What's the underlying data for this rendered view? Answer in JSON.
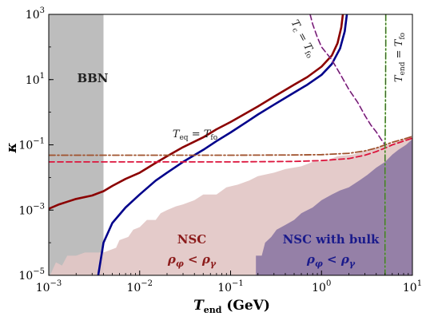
{
  "chart_data": {
    "type": "line",
    "xscale": "log",
    "yscale": "log",
    "xlim": [
      0.001,
      10
    ],
    "ylim": [
      1e-05,
      1000
    ],
    "xlabel_main": "T",
    "xlabel_sub": "end",
    "xlabel_unit": " (GeV)",
    "ylabel": "κ",
    "x_ticks": [
      {
        "value": 0.001,
        "base": "10",
        "exp": "−3"
      },
      {
        "value": 0.01,
        "base": "10",
        "exp": "−2"
      },
      {
        "value": 0.1,
        "base": "10",
        "exp": "−1"
      },
      {
        "value": 1,
        "base": "10",
        "exp": "0"
      },
      {
        "value": 10,
        "base": "10",
        "exp": "1"
      }
    ],
    "y_ticks": [
      {
        "value": 1e-05,
        "base": "10",
        "exp": "−5"
      },
      {
        "value": 0.001,
        "base": "10",
        "exp": "−3"
      },
      {
        "value": 0.1,
        "base": "10",
        "exp": "−1"
      },
      {
        "value": 10,
        "base": "10",
        "exp": "1"
      },
      {
        "value": 1000,
        "base": "10",
        "exp": "3"
      }
    ],
    "regions": [
      {
        "name": "BBN",
        "x_range": [
          0.001,
          0.004
        ],
        "color": "#bdbdbd"
      },
      {
        "name": "NSC ρφ < ργ",
        "color": "#e2c7c5",
        "boundary": [
          [
            0.001,
            8.1e-06
          ],
          [
            0.0012,
            2.5e-05
          ],
          [
            0.0014,
            2e-05
          ],
          [
            0.0016,
            4e-05
          ],
          [
            0.002,
            4e-05
          ],
          [
            0.0025,
            5e-05
          ],
          [
            0.004,
            5e-05
          ],
          [
            0.0055,
            7e-05
          ],
          [
            0.006,
            0.00012
          ],
          [
            0.0075,
            0.00015
          ],
          [
            0.0085,
            0.00025
          ],
          [
            0.01,
            0.0003
          ],
          [
            0.012,
            0.0005
          ],
          [
            0.015,
            0.0005
          ],
          [
            0.017,
            0.0008
          ],
          [
            0.02,
            0.001
          ],
          [
            0.025,
            0.0013
          ],
          [
            0.03,
            0.0015
          ],
          [
            0.04,
            0.002
          ],
          [
            0.05,
            0.003
          ],
          [
            0.07,
            0.003
          ],
          [
            0.09,
            0.005
          ],
          [
            0.12,
            0.006
          ],
          [
            0.16,
            0.008
          ],
          [
            0.2,
            0.011
          ],
          [
            0.3,
            0.014
          ],
          [
            0.4,
            0.018
          ],
          [
            0.6,
            0.022
          ],
          [
            0.8,
            0.03
          ],
          [
            1.1,
            0.032
          ],
          [
            1.5,
            0.045
          ],
          [
            2.2,
            0.05
          ],
          [
            3.2,
            0.068
          ],
          [
            4.5,
            0.09
          ],
          [
            6,
            0.11
          ],
          [
            8,
            0.15
          ],
          [
            10,
            0.2
          ]
        ]
      },
      {
        "name": "NSC with bulk ρφ < ργ",
        "color": "#8e7aa4",
        "boundary": [
          [
            0.19,
            1e-05
          ],
          [
            0.19,
            4e-05
          ],
          [
            0.22,
            4e-05
          ],
          [
            0.24,
            0.0001
          ],
          [
            0.28,
            0.00015
          ],
          [
            0.32,
            0.00025
          ],
          [
            0.4,
            0.00035
          ],
          [
            0.5,
            0.0005
          ],
          [
            0.6,
            0.0008
          ],
          [
            0.8,
            0.0012
          ],
          [
            1.0,
            0.002
          ],
          [
            1.3,
            0.003
          ],
          [
            1.6,
            0.004
          ],
          [
            2.0,
            0.005
          ],
          [
            2.6,
            0.008
          ],
          [
            3.2,
            0.012
          ],
          [
            4.0,
            0.02
          ],
          [
            5.0,
            0.03
          ],
          [
            6.0,
            0.05
          ],
          [
            7.0,
            0.07
          ],
          [
            8.5,
            0.1
          ],
          [
            10,
            0.15
          ]
        ]
      }
    ],
    "series": [
      {
        "color": "#8b0000",
        "style": "solid",
        "points": [
          [
            0.001,
            0.0011
          ],
          [
            0.0013,
            0.0015
          ],
          [
            0.0016,
            0.0018
          ],
          [
            0.002,
            0.0022
          ],
          [
            0.003,
            0.0028
          ],
          [
            0.004,
            0.0038
          ],
          [
            0.005,
            0.0055
          ],
          [
            0.007,
            0.009
          ],
          [
            0.01,
            0.014
          ],
          [
            0.015,
            0.028
          ],
          [
            0.02,
            0.045
          ],
          [
            0.03,
            0.085
          ],
          [
            0.05,
            0.17
          ],
          [
            0.07,
            0.3
          ],
          [
            0.1,
            0.5
          ],
          [
            0.15,
            0.95
          ],
          [
            0.2,
            1.5
          ],
          [
            0.3,
            3
          ],
          [
            0.5,
            7
          ],
          [
            0.7,
            12
          ],
          [
            1.0,
            25
          ],
          [
            1.3,
            55
          ],
          [
            1.5,
            130
          ],
          [
            1.65,
            400
          ],
          [
            1.72,
            1000
          ]
        ]
      },
      {
        "color": "#00008b",
        "style": "solid",
        "points": [
          [
            0.0035,
            1e-05
          ],
          [
            0.004,
            0.0001
          ],
          [
            0.005,
            0.0004
          ],
          [
            0.007,
            0.0012
          ],
          [
            0.01,
            0.003
          ],
          [
            0.015,
            0.008
          ],
          [
            0.02,
            0.014
          ],
          [
            0.03,
            0.03
          ],
          [
            0.05,
            0.07
          ],
          [
            0.07,
            0.13
          ],
          [
            0.1,
            0.24
          ],
          [
            0.15,
            0.5
          ],
          [
            0.2,
            0.85
          ],
          [
            0.3,
            1.7
          ],
          [
            0.5,
            4
          ],
          [
            0.7,
            7
          ],
          [
            1.0,
            14
          ],
          [
            1.3,
            30
          ],
          [
            1.6,
            90
          ],
          [
            1.8,
            300
          ],
          [
            1.9,
            1000
          ]
        ]
      },
      {
        "color": "#a0522d",
        "style": "dashdot",
        "points": [
          [
            0.001,
            0.048
          ],
          [
            0.01,
            0.048
          ],
          [
            0.1,
            0.048
          ],
          [
            0.5,
            0.049
          ],
          [
            1,
            0.05
          ],
          [
            2,
            0.055
          ],
          [
            3,
            0.065
          ],
          [
            4,
            0.08
          ],
          [
            5,
            0.1
          ],
          [
            6,
            0.12
          ],
          [
            8,
            0.15
          ],
          [
            10,
            0.18
          ]
        ]
      },
      {
        "color": "#dc143c",
        "style": "dashed",
        "points": [
          [
            0.001,
            0.03
          ],
          [
            0.01,
            0.03
          ],
          [
            0.1,
            0.03
          ],
          [
            0.5,
            0.031
          ],
          [
            1,
            0.033
          ],
          [
            2,
            0.038
          ],
          [
            3,
            0.048
          ],
          [
            4,
            0.062
          ],
          [
            5,
            0.08
          ],
          [
            6,
            0.1
          ],
          [
            8,
            0.13
          ],
          [
            10,
            0.16
          ]
        ]
      },
      {
        "color": "#cc33cc",
        "style": "dashed",
        "points": [
          [
            0.75,
            1000
          ],
          [
            0.8,
            500
          ],
          [
            0.9,
            200
          ],
          [
            1.0,
            100
          ],
          [
            1.3,
            40
          ],
          [
            1.6,
            15
          ],
          [
            2.0,
            5
          ],
          [
            2.5,
            2
          ],
          [
            3.0,
            0.8
          ],
          [
            3.5,
            0.4
          ],
          [
            4.0,
            0.25
          ],
          [
            4.5,
            0.15
          ],
          [
            5.0,
            0.1
          ]
        ]
      },
      {
        "color": "#66cc33",
        "style": "dashdot",
        "points": [
          [
            5.1,
            1000
          ],
          [
            5.1,
            100
          ],
          [
            5.05,
            1
          ],
          [
            5.0,
            0.1
          ],
          [
            5.0,
            0.001
          ],
          [
            5.0,
            1e-05
          ]
        ]
      }
    ],
    "annotations": [
      {
        "text": "BBN",
        "x": 0.0018,
        "y": 3,
        "color": "#222222",
        "kind": "region"
      },
      {
        "text": "NSC",
        "x": 0.04,
        "y": 0.00012,
        "color": "#8b1a1a",
        "kind": "region"
      },
      {
        "text": "ρ",
        "x": 0.04,
        "y": 3e-05,
        "color": "#8b1a1a",
        "kind": "region-math"
      },
      {
        "text": "NSC with bulk",
        "x": 0.9,
        "y": 0.00012,
        "color": "#1a1a8b",
        "kind": "region"
      },
      {
        "text": "ρ",
        "x": 0.9,
        "y": 3e-05,
        "color": "#1a1a8b",
        "kind": "region-math"
      },
      {
        "text": "T",
        "x": 0.08,
        "y": 0.16,
        "color": "#222222",
        "kind": "curve"
      },
      {
        "text": "T",
        "x": 0.8,
        "y": 300,
        "color": "#222222",
        "kind": "curve-rot"
      },
      {
        "text": "T",
        "x": 8,
        "y": 40,
        "color": "#222222",
        "kind": "curve-rot"
      }
    ],
    "labels": {
      "bbn": "BBN",
      "nsc": "NSC",
      "nsc_bulk": "NSC with bulk",
      "rho_phi": "ρ",
      "phi": "φ",
      "lt": " < ",
      "rho_gamma": "ρ",
      "gamma": "γ",
      "teq": "T",
      "teq_sub": "eq",
      "tfo": "T",
      "tfo_sub": "fo",
      "tc": "T",
      "tc_sub": "c",
      "tend": "T",
      "tend_sub": "end",
      "equals": " = "
    },
    "grid": false
  }
}
